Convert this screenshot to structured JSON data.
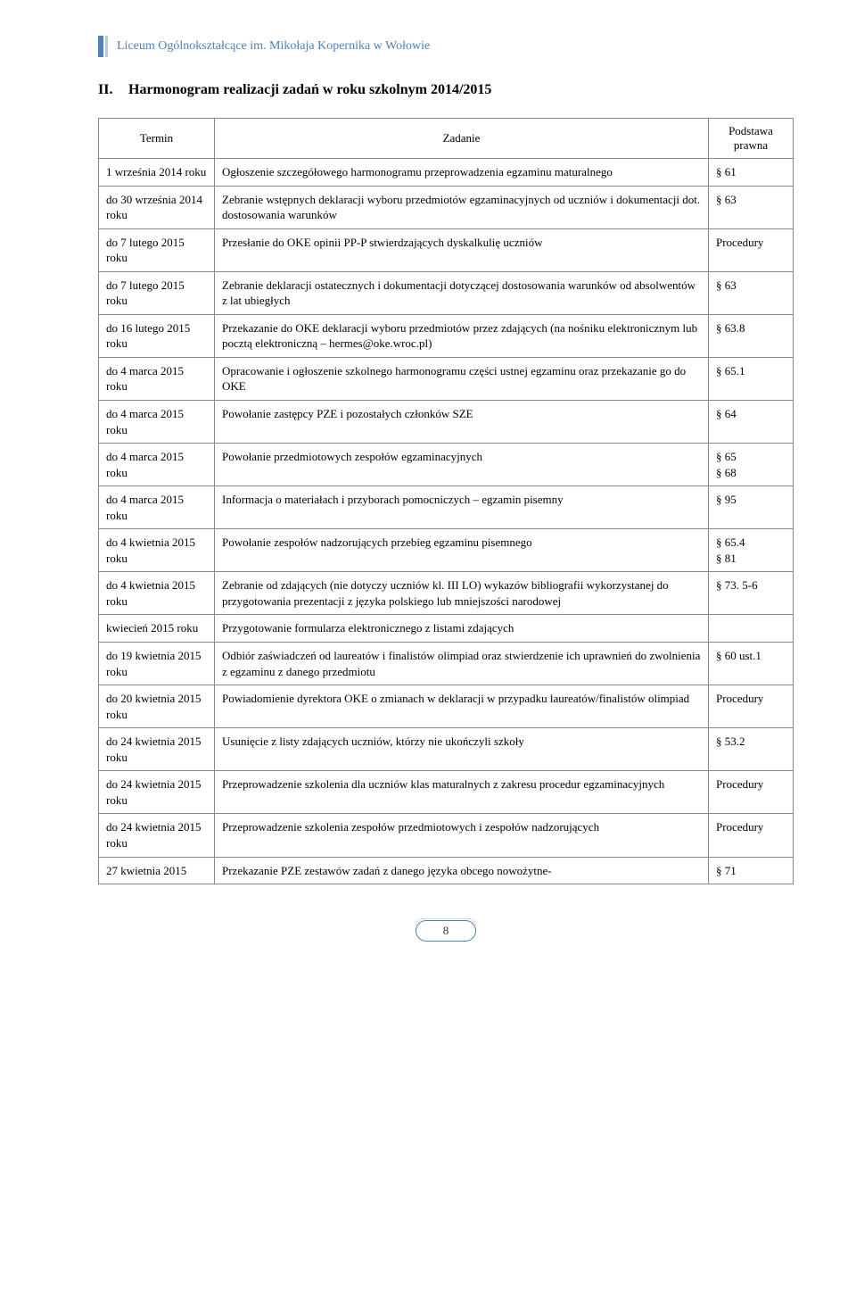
{
  "header": {
    "school_name": "Liceum Ogólnokształcące im. Mikołaja Kopernika w Wołowie"
  },
  "section": {
    "number": "II.",
    "title": "Harmonogram realizacji zadań w roku szkolnym 2014/2015"
  },
  "table": {
    "columns": {
      "termin": "Termin",
      "zadanie": "Zadanie",
      "podstawa": "Podstawa prawna"
    },
    "rows": [
      {
        "termin": "1 września 2014 roku",
        "zadanie": "Ogłoszenie szczegółowego harmonogramu przeprowadzenia egzaminu maturalnego",
        "podstawa": "§ 61"
      },
      {
        "termin": "do 30 września 2014 roku",
        "zadanie": "Zebranie wstępnych deklaracji wyboru przedmiotów egzaminacyjnych od uczniów i dokumentacji dot. dostosowania warunków",
        "podstawa": "§ 63"
      },
      {
        "termin": "do 7 lutego 2015 roku",
        "zadanie": "Przesłanie do OKE opinii PP-P stwierdzających dyskalkulię uczniów",
        "podstawa": "Procedury"
      },
      {
        "termin": "do 7 lutego 2015 roku",
        "zadanie": "Zebranie deklaracji ostatecznych i dokumentacji dotyczącej dostosowania warunków od absolwentów z lat ubiegłych",
        "podstawa": "§ 63"
      },
      {
        "termin": "do 16 lutego 2015 roku",
        "zadanie": "Przekazanie do OKE deklaracji wyboru przedmiotów przez zdających (na nośniku elektronicznym lub pocztą elektroniczną – hermes@oke.wroc.pl)",
        "podstawa": "§ 63.8"
      },
      {
        "termin": "do 4 marca 2015 roku",
        "zadanie": "Opracowanie i ogłoszenie szkolnego harmonogramu części ustnej egzaminu oraz przekazanie go do OKE",
        "podstawa": "§ 65.1"
      },
      {
        "termin": "do 4 marca 2015 roku",
        "zadanie": "Powołanie zastępcy PZE i pozostałych członków SZE",
        "podstawa": "§ 64"
      },
      {
        "termin": "do 4 marca 2015 roku",
        "zadanie": "Powołanie przedmiotowych zespołów egzaminacyjnych",
        "podstawa": "§ 65\n§ 68"
      },
      {
        "termin": "do 4 marca 2015 roku",
        "zadanie": "Informacja o materiałach i przyborach pomocniczych – egzamin pisemny",
        "podstawa": "§ 95"
      },
      {
        "termin": "do 4 kwietnia 2015 roku",
        "zadanie": "Powołanie zespołów nadzorujących przebieg egzaminu pisemnego",
        "podstawa": "§ 65.4\n§ 81"
      },
      {
        "termin": "do 4 kwietnia 2015 roku",
        "zadanie": "Zebranie od zdających (nie dotyczy uczniów kl. III LO) wykazów bibliografii wykorzystanej do przygotowania prezentacji z języka polskiego lub mniejszości narodowej",
        "podstawa": "§ 73. 5-6"
      },
      {
        "termin": "kwiecień 2015 roku",
        "zadanie": "Przygotowanie formularza elektronicznego z listami zdających",
        "podstawa": ""
      },
      {
        "termin": "do 19 kwietnia 2015 roku",
        "zadanie": "Odbiór zaświadczeń od laureatów i finalistów olimpiad oraz stwierdzenie ich uprawnień do zwolnienia z egzaminu z danego przedmiotu",
        "podstawa": "§ 60 ust.1"
      },
      {
        "termin": "do 20 kwietnia 2015 roku",
        "zadanie": "Powiadomienie dyrektora OKE o zmianach w deklaracji w przypadku laureatów/finalistów olimpiad",
        "podstawa": "Procedury"
      },
      {
        "termin": "do 24 kwietnia 2015 roku",
        "zadanie": "Usunięcie z listy zdających uczniów, którzy nie ukończyli szkoły",
        "podstawa": "§ 53.2"
      },
      {
        "termin": "do 24 kwietnia 2015 roku",
        "zadanie": "Przeprowadzenie szkolenia dla uczniów klas maturalnych z zakresu procedur egzaminacyjnych",
        "podstawa": "Procedury"
      },
      {
        "termin": "do 24 kwietnia 2015 roku",
        "zadanie": "Przeprowadzenie szkolenia zespołów przedmiotowych i zespołów nadzorujących",
        "podstawa": "Procedury"
      },
      {
        "termin": "27 kwietnia 2015",
        "zadanie": "Przekazanie PZE zestawów zadań z danego języka obcego nowożytne-",
        "podstawa": "§ 71"
      }
    ]
  },
  "footer": {
    "page_number": "8"
  }
}
